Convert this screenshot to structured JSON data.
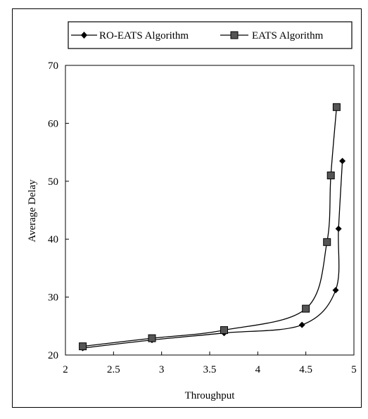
{
  "chart_data": {
    "type": "line",
    "xlabel": "Throughput",
    "ylabel": "Average Delay",
    "xlim": [
      2,
      5
    ],
    "ylim": [
      20,
      70
    ],
    "xticks": [
      "2",
      "2.5",
      "3",
      "3.5",
      "4",
      "4.5",
      "5"
    ],
    "yticks": [
      "20",
      "30",
      "40",
      "50",
      "60",
      "70"
    ],
    "grid": false,
    "legend_position": "top",
    "series": [
      {
        "name": "RO-EATS Algorithm",
        "marker": "diamond",
        "color": "#000000",
        "points": [
          {
            "x": 2.18,
            "y": 21.2
          },
          {
            "x": 2.9,
            "y": 22.6
          },
          {
            "x": 3.65,
            "y": 23.8
          },
          {
            "x": 4.46,
            "y": 25.2
          },
          {
            "x": 4.81,
            "y": 31.2
          },
          {
            "x": 4.84,
            "y": 41.8
          },
          {
            "x": 4.88,
            "y": 53.5
          }
        ]
      },
      {
        "name": "EATS Algorithm",
        "marker": "square",
        "color": "#000000",
        "points": [
          {
            "x": 2.18,
            "y": 21.5
          },
          {
            "x": 2.9,
            "y": 22.9
          },
          {
            "x": 3.65,
            "y": 24.3
          },
          {
            "x": 4.5,
            "y": 28.0
          },
          {
            "x": 4.72,
            "y": 39.5
          },
          {
            "x": 4.76,
            "y": 51.0
          },
          {
            "x": 4.82,
            "y": 62.8
          }
        ]
      }
    ]
  }
}
